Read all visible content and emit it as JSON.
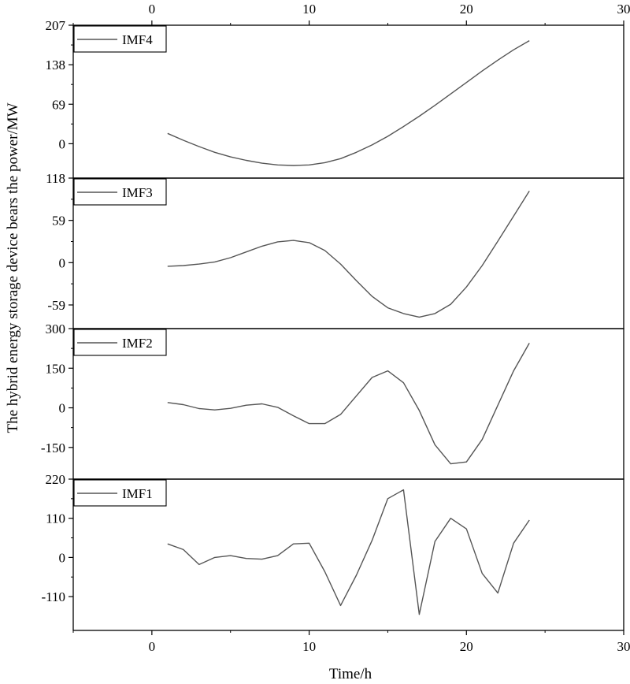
{
  "chart_data": {
    "type": "line",
    "shared_x_axis": {
      "xlabel": "Time/h",
      "xlim": [
        -5,
        30
      ],
      "xticks": [
        0,
        10,
        20,
        30
      ],
      "xtick_labels": [
        "0",
        "10",
        "20",
        "30"
      ]
    },
    "ylabel": "The hybrid energy storage device bears the power/MW",
    "grid": false,
    "legend_position": "top-left",
    "x": [
      1,
      2,
      3,
      4,
      5,
      6,
      7,
      8,
      9,
      10,
      11,
      12,
      13,
      14,
      15,
      16,
      17,
      18,
      19,
      20,
      21,
      22,
      23,
      24
    ],
    "panels": [
      {
        "name": "IMF4",
        "ylim": [
          -60,
          207
        ],
        "yticks": [
          0,
          69,
          138,
          207
        ],
        "ytick_labels": [
          "0",
          "69",
          "138",
          "207"
        ],
        "values": [
          18,
          6,
          -5,
          -15,
          -23,
          -29,
          -34,
          -37,
          -38,
          -37,
          -33,
          -26,
          -15,
          -2,
          13,
          30,
          48,
          67,
          87,
          107,
          127,
          146,
          164,
          180
        ]
      },
      {
        "name": "IMF3",
        "ylim": [
          -92,
          118
        ],
        "yticks": [
          -59,
          0,
          59,
          118
        ],
        "ytick_labels": [
          "-59",
          "0",
          "59",
          "118"
        ],
        "values": [
          -5,
          -4,
          -2,
          1,
          7,
          15,
          23,
          29,
          31,
          28,
          17,
          -2,
          -25,
          -47,
          -63,
          -71,
          -76,
          -71,
          -58,
          -34,
          -4,
          30,
          65,
          100
        ]
      },
      {
        "name": "IMF2",
        "ylim": [
          -270,
          300
        ],
        "yticks": [
          -150,
          0,
          150,
          300
        ],
        "ytick_labels": [
          "-150",
          "0",
          "150",
          "300"
        ],
        "values": [
          20,
          12,
          -3,
          -8,
          -2,
          10,
          15,
          2,
          -30,
          -60,
          -60,
          -25,
          45,
          115,
          140,
          95,
          -10,
          -140,
          -212,
          -205,
          -120,
          10,
          140,
          245
        ]
      },
      {
        "name": "IMF1",
        "ylim": [
          -205,
          220
        ],
        "yticks": [
          -110,
          0,
          110,
          220
        ],
        "ytick_labels": [
          "-110",
          "0",
          "110",
          "220"
        ],
        "values": [
          38,
          22,
          -20,
          0,
          5,
          -3,
          -5,
          5,
          38,
          40,
          -40,
          -135,
          -50,
          48,
          165,
          190,
          -160,
          45,
          110,
          80,
          -45,
          -100,
          40,
          105
        ]
      }
    ]
  }
}
